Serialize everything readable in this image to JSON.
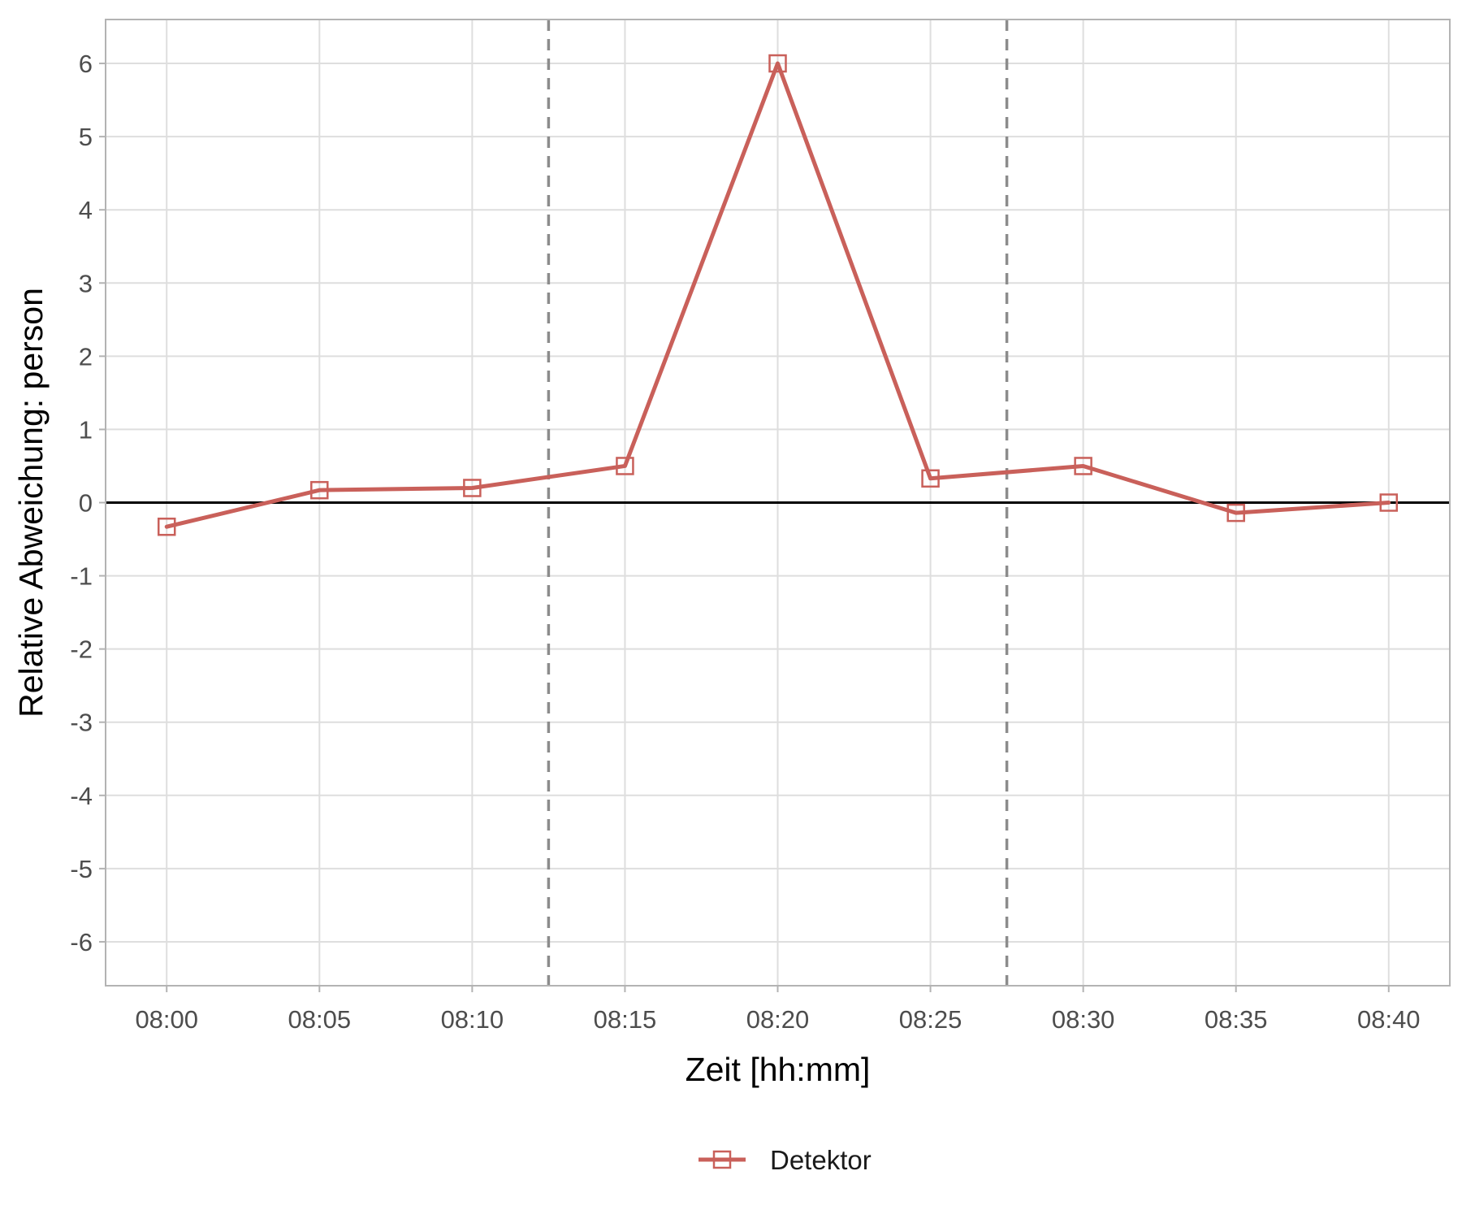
{
  "chart_data": {
    "type": "line",
    "title": "",
    "xlabel": "Zeit [hh:mm]",
    "ylabel": "Relative Abweichung: person",
    "x": [
      "08:00",
      "08:05",
      "08:10",
      "08:15",
      "08:20",
      "08:25",
      "08:30",
      "08:35",
      "08:40"
    ],
    "x_tick_labels": [
      "08:00",
      "08:05",
      "08:10",
      "08:15",
      "08:20",
      "08:25",
      "08:30",
      "08:35",
      "08:40"
    ],
    "y_tick_labels": [
      "6",
      "5",
      "4",
      "3",
      "2",
      "1",
      "0",
      "-1",
      "-2",
      "-3",
      "-4",
      "-5",
      "-6"
    ],
    "y_ticks": [
      6,
      5,
      4,
      3,
      2,
      1,
      0,
      -1,
      -2,
      -3,
      -4,
      -5,
      -6
    ],
    "xlim": [
      "07:58",
      "08:42"
    ],
    "ylim": [
      -6.6,
      6.6
    ],
    "series": [
      {
        "name": "Detektor",
        "color": "#c9605a",
        "marker": "open-square",
        "values": [
          -0.33,
          0.17,
          0.2,
          0.5,
          6.0,
          0.33,
          0.5,
          -0.14,
          0.0
        ]
      }
    ],
    "reference_lines": {
      "horizontal": {
        "y": 0,
        "color": "#000000",
        "style": "solid"
      },
      "vertical": [
        {
          "x": "08:12:30",
          "color": "#8c8c8c",
          "style": "dashed"
        },
        {
          "x": "08:27:30",
          "color": "#8c8c8c",
          "style": "dashed"
        }
      ]
    },
    "grid": true,
    "legend_position": "bottom",
    "colors": {
      "series": "#c9605a",
      "grid": "#dedede",
      "panel_border": "#b3b3b3",
      "zero_line": "#000000",
      "dashed_lines": "#8c8c8c"
    }
  }
}
